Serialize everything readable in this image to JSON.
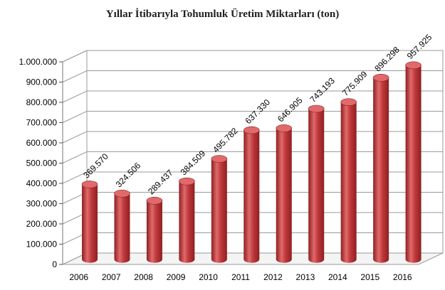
{
  "chart_data": {
    "type": "bar",
    "title": "Yıllar İtibarıyla Tohumluk Üretim Miktarları (ton)",
    "categories": [
      "2006",
      "2007",
      "2008",
      "2009",
      "2010",
      "2011",
      "2012",
      "2013",
      "2014",
      "2015",
      "2016"
    ],
    "values": [
      369570,
      324506,
      289437,
      384509,
      495782,
      637330,
      646905,
      743193,
      775909,
      896298,
      957925
    ],
    "data_labels": [
      "369.570",
      "324.506",
      "289.437",
      "384.509",
      "495.782",
      "637.330",
      "646.905",
      "743.193",
      "775.909",
      "896.298",
      "957.925"
    ],
    "y_ticks": [
      "0",
      "100.000",
      "200.000",
      "300.000",
      "400.000",
      "500.000",
      "600.000",
      "700.000",
      "800.000",
      "900.000",
      "1.000.000"
    ],
    "ylim": [
      0,
      1000000
    ],
    "grid": true,
    "legend": "none",
    "bar_color": "#c0393b",
    "bar_shade": "#8e1f22",
    "bar_highlight": "#e06a6b"
  }
}
